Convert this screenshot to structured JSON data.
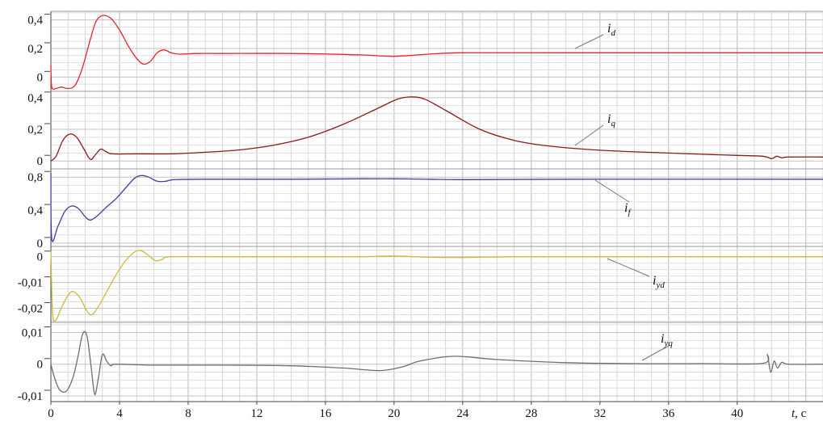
{
  "chart_data": {
    "type": "line",
    "xlabel": "t, c",
    "xlabel_var": "t",
    "xlabel_unit": ", c",
    "xlim": [
      0,
      45
    ],
    "x_ticks": [
      0,
      4,
      8,
      12,
      16,
      20,
      24,
      28,
      32,
      36,
      40
    ],
    "x_tick_labels": [
      "0",
      "4",
      "8",
      "12",
      "16",
      "20",
      "24",
      "28",
      "32",
      "36",
      "40"
    ],
    "grid": true,
    "panels": [
      {
        "name": "i",
        "sub": "d",
        "color": "#e8232a",
        "ylim": [
          -0.1,
          0.46
        ],
        "y_ticks": [
          0,
          0.2,
          0.4
        ],
        "y_tick_labels": [
          "0",
          "0,2",
          "0,4"
        ],
        "points": [
          [
            0,
            0.08
          ],
          [
            0.05,
            -0.07
          ],
          [
            0.3,
            -0.08
          ],
          [
            0.6,
            -0.07
          ],
          [
            1.0,
            -0.08
          ],
          [
            1.4,
            -0.06
          ],
          [
            1.8,
            0.05
          ],
          [
            2.2,
            0.22
          ],
          [
            2.6,
            0.38
          ],
          [
            3.0,
            0.43
          ],
          [
            3.5,
            0.41
          ],
          [
            4.0,
            0.33
          ],
          [
            4.5,
            0.22
          ],
          [
            5.0,
            0.13
          ],
          [
            5.4,
            0.09
          ],
          [
            5.8,
            0.11
          ],
          [
            6.2,
            0.17
          ],
          [
            6.6,
            0.19
          ],
          [
            7.0,
            0.17
          ],
          [
            7.5,
            0.16
          ],
          [
            8.5,
            0.165
          ],
          [
            10,
            0.165
          ],
          [
            14,
            0.165
          ],
          [
            18,
            0.155
          ],
          [
            20,
            0.145
          ],
          [
            22,
            0.16
          ],
          [
            24,
            0.17
          ],
          [
            30,
            0.17
          ],
          [
            45,
            0.17
          ]
        ]
      },
      {
        "name": "i",
        "sub": "q",
        "color": "#8b1a1a",
        "ylim": [
          -0.05,
          0.44
        ],
        "y_ticks": [
          0,
          0.2,
          0.4
        ],
        "y_tick_labels": [
          "0",
          "0,2",
          "0,4"
        ],
        "points": [
          [
            0,
            0.0
          ],
          [
            0.3,
            0.03
          ],
          [
            0.7,
            0.13
          ],
          [
            1.1,
            0.17
          ],
          [
            1.5,
            0.15
          ],
          [
            1.9,
            0.08
          ],
          [
            2.3,
            0.01
          ],
          [
            2.6,
            0.04
          ],
          [
            2.9,
            0.075
          ],
          [
            3.2,
            0.06
          ],
          [
            3.6,
            0.045
          ],
          [
            5,
            0.045
          ],
          [
            7,
            0.045
          ],
          [
            9,
            0.055
          ],
          [
            11,
            0.07
          ],
          [
            13,
            0.1
          ],
          [
            15,
            0.15
          ],
          [
            17,
            0.23
          ],
          [
            19,
            0.33
          ],
          [
            20.2,
            0.39
          ],
          [
            21,
            0.405
          ],
          [
            21.8,
            0.39
          ],
          [
            23,
            0.32
          ],
          [
            25,
            0.2
          ],
          [
            27,
            0.13
          ],
          [
            29,
            0.095
          ],
          [
            32,
            0.068
          ],
          [
            36,
            0.05
          ],
          [
            40,
            0.035
          ],
          [
            41.5,
            0.03
          ],
          [
            42,
            0.015
          ],
          [
            42.3,
            0.03
          ],
          [
            42.6,
            0.02
          ],
          [
            43,
            0.025
          ],
          [
            45,
            0.025
          ]
        ]
      },
      {
        "name": "i",
        "sub": "f",
        "color": "#4a3a9e",
        "ylim": [
          -0.04,
          0.9
        ],
        "y_ticks": [
          0,
          0.4,
          0.8
        ],
        "y_tick_labels": [
          "0",
          "0,4",
          "0,8"
        ],
        "points": [
          [
            0,
            0.85
          ],
          [
            0.05,
            0.05
          ],
          [
            0.4,
            0.2
          ],
          [
            0.8,
            0.38
          ],
          [
            1.2,
            0.45
          ],
          [
            1.6,
            0.42
          ],
          [
            2.0,
            0.32
          ],
          [
            2.3,
            0.28
          ],
          [
            2.7,
            0.33
          ],
          [
            3.2,
            0.43
          ],
          [
            3.8,
            0.54
          ],
          [
            4.4,
            0.68
          ],
          [
            4.9,
            0.79
          ],
          [
            5.3,
            0.82
          ],
          [
            5.7,
            0.8
          ],
          [
            6.2,
            0.75
          ],
          [
            6.7,
            0.75
          ],
          [
            7.2,
            0.77
          ],
          [
            9,
            0.775
          ],
          [
            14,
            0.775
          ],
          [
            18,
            0.78
          ],
          [
            20,
            0.78
          ],
          [
            22,
            0.775
          ],
          [
            24,
            0.77
          ],
          [
            30,
            0.775
          ],
          [
            45,
            0.775
          ]
        ]
      },
      {
        "name": "i",
        "sub": "yd",
        "color": "#cdbb3a",
        "ylim": [
          -0.0255,
          0.004
        ],
        "y_ticks": [
          -0.02,
          -0.01,
          0
        ],
        "y_tick_labels": [
          "-0,02",
          "-0,01",
          "0"
        ],
        "points": [
          [
            0,
            0.002
          ],
          [
            0.1,
            -0.022
          ],
          [
            0.3,
            -0.0245
          ],
          [
            0.6,
            -0.02
          ],
          [
            1.0,
            -0.015
          ],
          [
            1.3,
            -0.0135
          ],
          [
            1.7,
            -0.016
          ],
          [
            2.1,
            -0.021
          ],
          [
            2.4,
            -0.0225
          ],
          [
            2.8,
            -0.019
          ],
          [
            3.3,
            -0.013
          ],
          [
            3.8,
            -0.007
          ],
          [
            4.3,
            -0.002
          ],
          [
            4.8,
            0.0015
          ],
          [
            5.2,
            0.0025
          ],
          [
            5.6,
            0.001
          ],
          [
            6.1,
            -0.0015
          ],
          [
            6.5,
            -0.001
          ],
          [
            7.0,
            0.0
          ],
          [
            10,
            0.0
          ],
          [
            16,
            0.0
          ],
          [
            18,
            0.0
          ],
          [
            20,
            0.0003
          ],
          [
            22,
            -0.0002
          ],
          [
            24,
            -0.0003
          ],
          [
            28,
            0.0
          ],
          [
            45,
            0.0
          ]
        ]
      },
      {
        "name": "i",
        "sub": "yq",
        "color": "#6e6e6e",
        "ylim": [
          -0.0118,
          0.0132
        ],
        "y_ticks": [
          -0.01,
          0,
          0.01
        ],
        "y_tick_labels": [
          "-0,01",
          "0",
          "0,01"
        ],
        "points": [
          [
            0,
            0.0
          ],
          [
            0.2,
            -0.004
          ],
          [
            0.5,
            -0.008
          ],
          [
            0.9,
            -0.0085
          ],
          [
            1.3,
            -0.004
          ],
          [
            1.6,
            0.003
          ],
          [
            1.85,
            0.0095
          ],
          [
            2.1,
            0.009
          ],
          [
            2.35,
            -0.001
          ],
          [
            2.55,
            -0.0095
          ],
          [
            2.75,
            -0.005
          ],
          [
            3.0,
            0.003
          ],
          [
            3.25,
            0.001
          ],
          [
            3.5,
            -0.0005
          ],
          [
            3.8,
            0.0
          ],
          [
            6,
            -0.0003
          ],
          [
            10,
            -0.0003
          ],
          [
            14,
            -0.0005
          ],
          [
            17,
            -0.0012
          ],
          [
            19.2,
            -0.002
          ],
          [
            20.5,
            -0.0008
          ],
          [
            21.5,
            0.001
          ],
          [
            23.5,
            0.0025
          ],
          [
            26,
            0.0015
          ],
          [
            30,
            0.0005
          ],
          [
            34,
            0.0002
          ],
          [
            38,
            0.0002
          ],
          [
            41.5,
            0.0003
          ],
          [
            41.75,
            0.003
          ],
          [
            41.95,
            -0.0025
          ],
          [
            42.15,
            0.001
          ],
          [
            42.35,
            -0.0012
          ],
          [
            42.6,
            0.0006
          ],
          [
            43,
            0.0
          ],
          [
            45,
            0.0
          ]
        ]
      }
    ]
  }
}
